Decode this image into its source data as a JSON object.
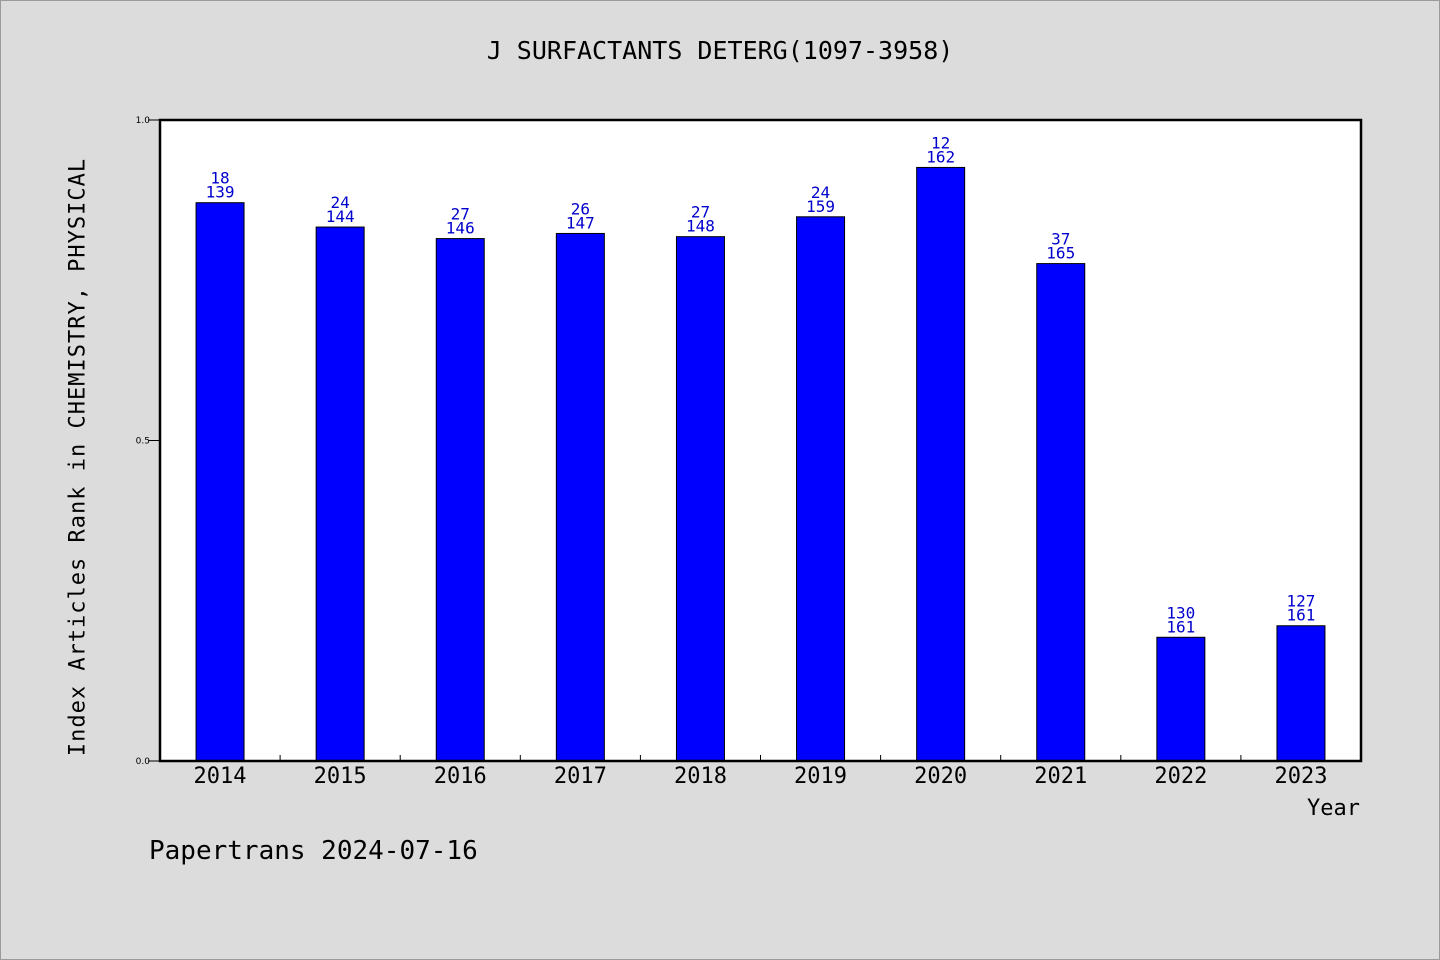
{
  "chart_data": {
    "type": "bar",
    "title": "J SURFACTANTS DETERG(1097-3958)",
    "xlabel": "Year",
    "ylabel": "Index Articles Rank in CHEMISTRY, PHYSICAL",
    "ylim": [
      0.0,
      1.0
    ],
    "yticks": [
      "0.0",
      "0.5",
      "1.0"
    ],
    "categories": [
      "2014",
      "2015",
      "2016",
      "2017",
      "2018",
      "2019",
      "2020",
      "2021",
      "2022",
      "2023"
    ],
    "values": [
      0.871,
      0.833,
      0.815,
      0.823,
      0.818,
      0.849,
      0.926,
      0.776,
      0.193,
      0.211
    ],
    "rank": [
      "18",
      "24",
      "27",
      "26",
      "27",
      "24",
      "12",
      "37",
      "130",
      "127"
    ],
    "total": [
      "139",
      "144",
      "146",
      "147",
      "148",
      "159",
      "162",
      "165",
      "161",
      "161"
    ],
    "bar_color": "#0000ff",
    "label_color": "#0000cc",
    "grid": false,
    "legend": "none"
  },
  "footer": "Papertrans 2024-07-16"
}
